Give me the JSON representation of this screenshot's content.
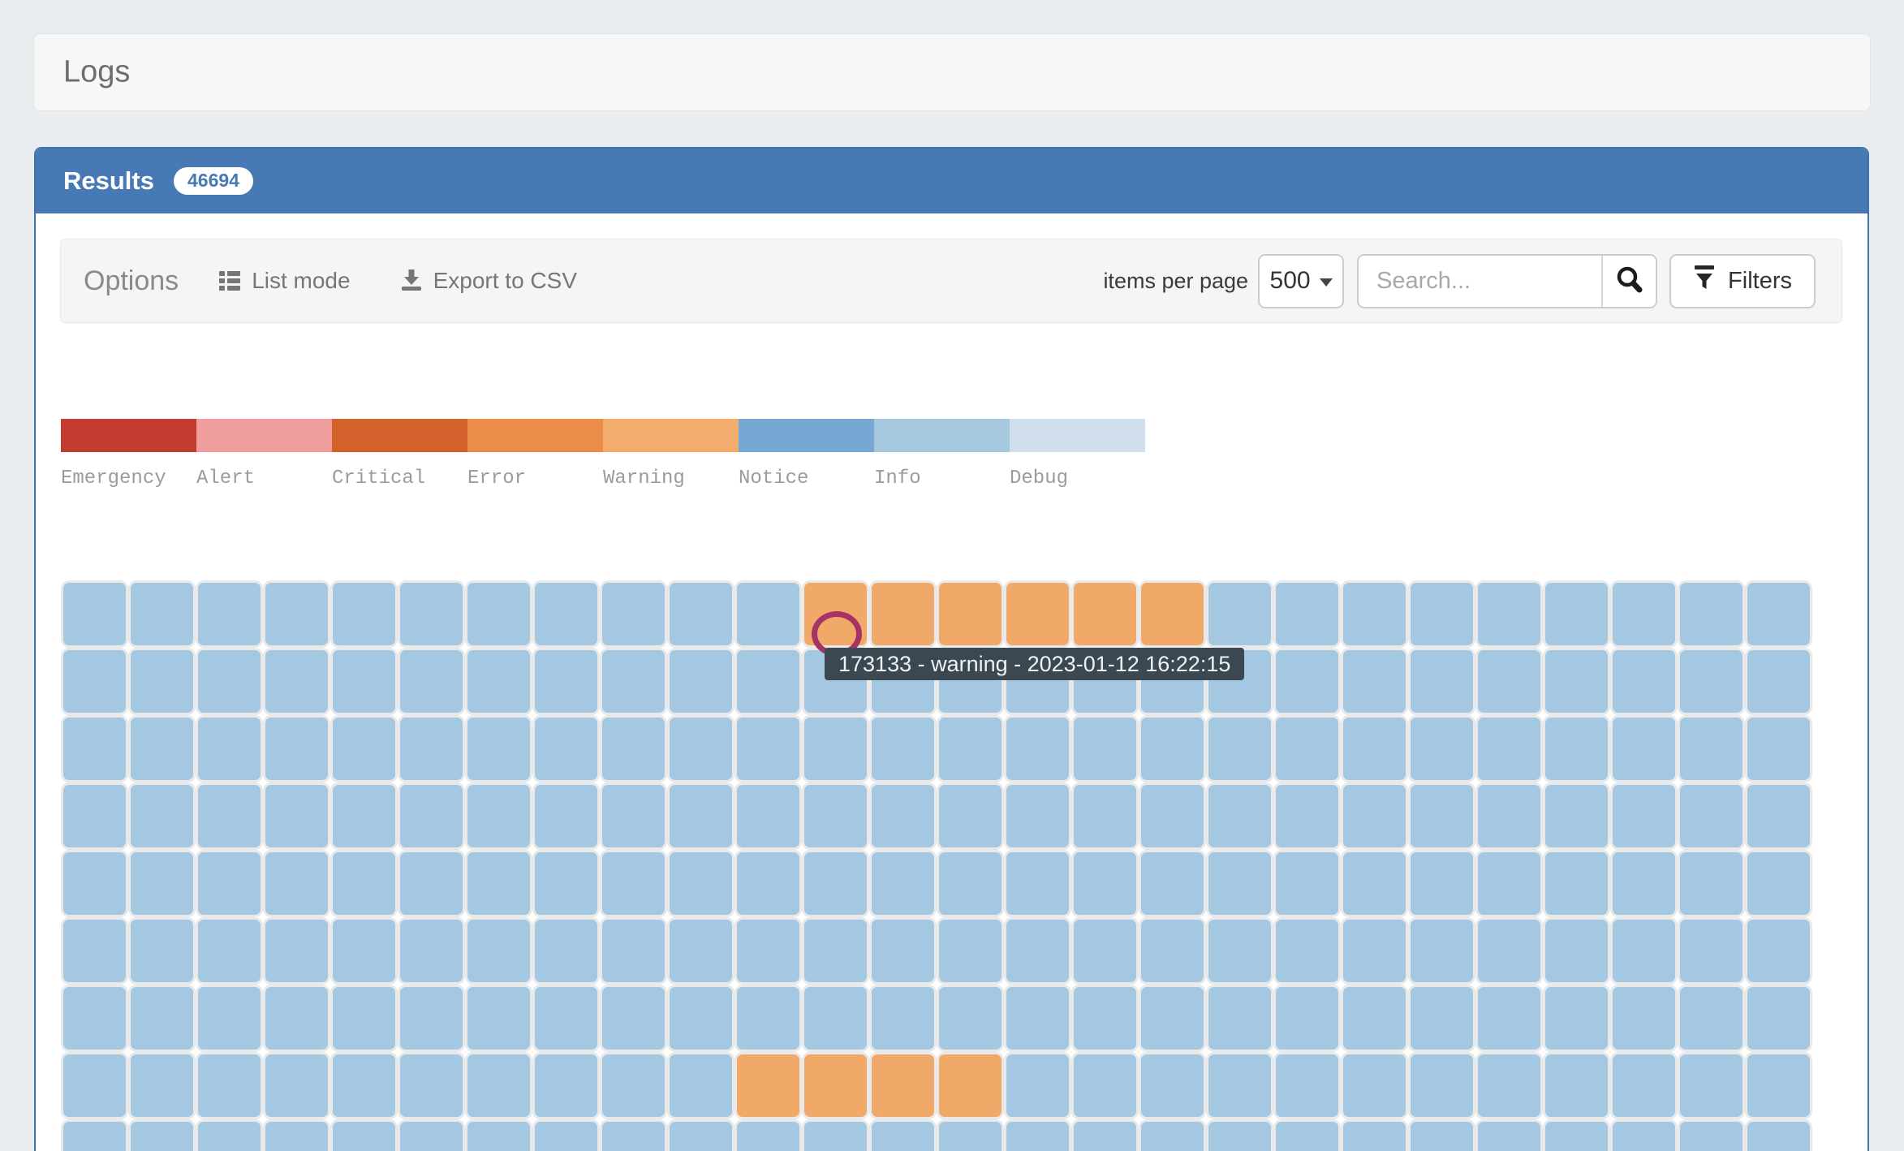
{
  "page": {
    "title": "Logs",
    "background_color": "#e9edf0"
  },
  "results": {
    "title": "Results",
    "count": "46694",
    "header_color": "#4779b4"
  },
  "toolbar": {
    "options_label": "Options",
    "list_mode_label": "List mode",
    "export_label": "Export to CSV",
    "items_per_page_label": "items per page",
    "page_size_value": "500",
    "search_placeholder": "Search...",
    "filters_label": "Filters"
  },
  "legend": [
    {
      "label": "Emergency",
      "color": "#c23b31"
    },
    {
      "label": "Alert",
      "color": "#f09e9d"
    },
    {
      "label": "Critical",
      "color": "#d2612c"
    },
    {
      "label": "Error",
      "color": "#ec8c49"
    },
    {
      "label": "Warning",
      "color": "#f1ac6e"
    },
    {
      "label": "Notice",
      "color": "#77a8d3"
    },
    {
      "label": "Info",
      "color": "#a6c8de"
    },
    {
      "label": "Debug",
      "color": "#cfddec"
    }
  ],
  "chart_data": {
    "type": "heatmap",
    "columns": 26,
    "rows": 9,
    "default_level": "info",
    "level_colors": {
      "info": "#a4c8e1",
      "warning": "#f1a969"
    },
    "warning_runs": [
      {
        "row": 0,
        "col_start": 11,
        "col_end": 16
      },
      {
        "row": 7,
        "col_start": 10,
        "col_end": 13
      }
    ],
    "highlighted_cell": {
      "row": 0,
      "col": 11
    },
    "tooltip": {
      "text": "173133 - warning - 2023-01-12 16:22:15",
      "entry_id": "173133",
      "level": "warning",
      "timestamp": "2023-01-12 16:22:15"
    }
  }
}
